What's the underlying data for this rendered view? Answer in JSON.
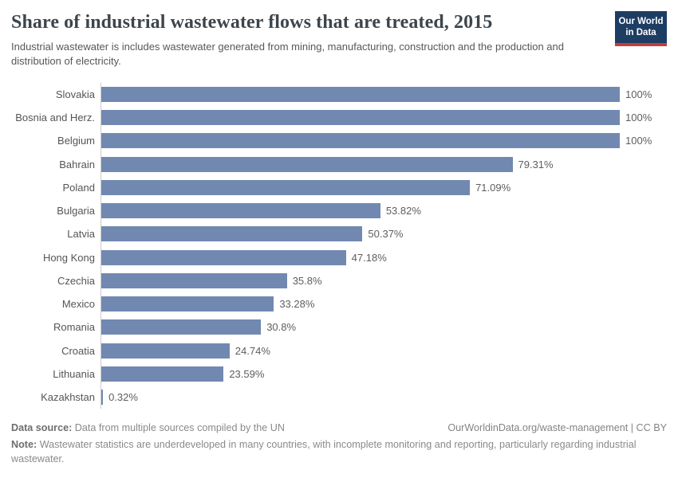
{
  "logo": {
    "line1": "Our World",
    "line2": "in Data",
    "bg_color": "#1d3d63",
    "accent_color": "#c53c3c"
  },
  "header": {
    "title": "Share of industrial wastewater flows that are treated, 2015",
    "subtitle": "Industrial wastewater is includes wastewater generated from mining, manufacturing, construction and the production and distribution of electricity."
  },
  "chart_data": {
    "type": "bar",
    "orientation": "horizontal",
    "title": "Share of industrial wastewater flows that are treated, 2015",
    "categories": [
      "Slovakia",
      "Bosnia and Herz.",
      "Belgium",
      "Bahrain",
      "Poland",
      "Bulgaria",
      "Latvia",
      "Hong Kong",
      "Czechia",
      "Mexico",
      "Romania",
      "Croatia",
      "Lithuania",
      "Kazakhstan"
    ],
    "values": [
      100,
      100,
      100,
      79.31,
      71.09,
      53.82,
      50.37,
      47.18,
      35.8,
      33.28,
      30.8,
      24.74,
      23.59,
      0.32
    ],
    "value_labels": [
      "100%",
      "100%",
      "100%",
      "79.31%",
      "71.09%",
      "53.82%",
      "50.37%",
      "47.18%",
      "35.8%",
      "33.28%",
      "30.8%",
      "24.74%",
      "23.59%",
      "0.32%"
    ],
    "xlim": [
      0,
      100
    ],
    "unit": "%",
    "bar_color": "#7189b1",
    "axis_color": "#cccccc",
    "grid": false,
    "legend": false
  },
  "footer": {
    "source_label": "Data source:",
    "source_text": "Data from multiple sources compiled by the UN",
    "attribution": "OurWorldinData.org/waste-management | CC BY",
    "note_label": "Note:",
    "note_text": "Wastewater statistics are underdeveloped in many countries, with incomplete monitoring and reporting, particularly regarding industrial wastewater."
  }
}
